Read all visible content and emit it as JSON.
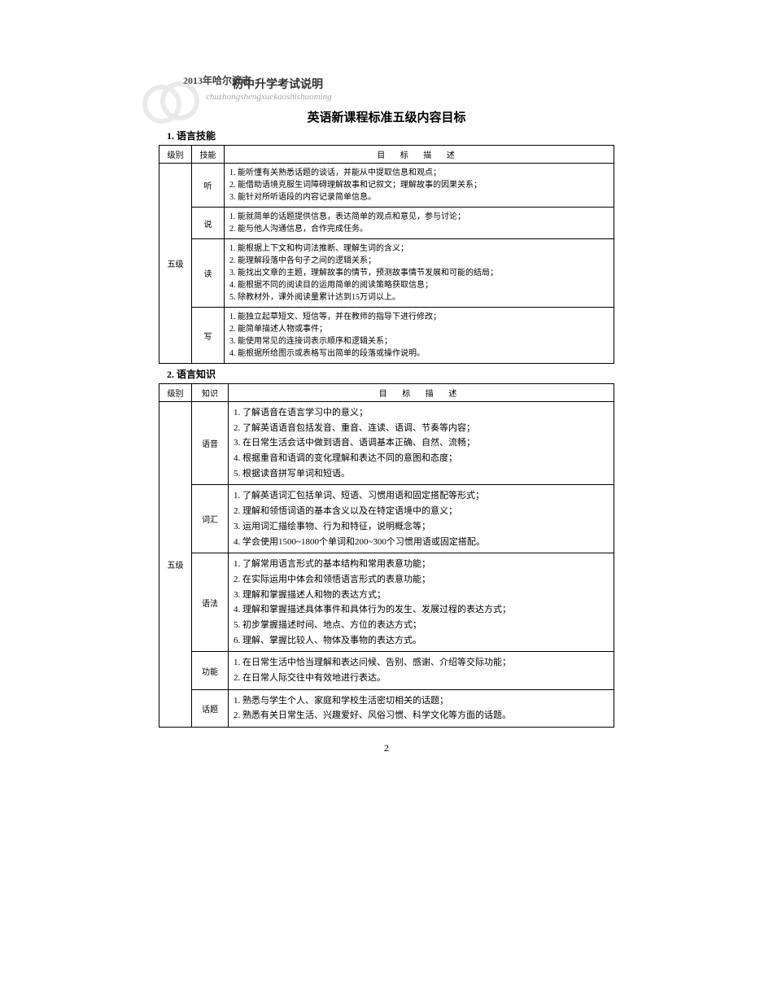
{
  "header": {
    "year": "2013年哈尔滨市",
    "chinese_title": "初中升学考试说明",
    "pinyin": "chuzhongshengxuekaoshishuoming"
  },
  "doc_title": "英语新课程标准五级内容目标",
  "page_number": "2",
  "section1": {
    "title": "1. 语言技能",
    "headers": {
      "level": "级别",
      "skill": "技能",
      "desc": "目  标  描  述"
    },
    "level": "五级",
    "rows": [
      {
        "skill": "听",
        "items": [
          "1. 能听懂有关熟悉话题的谈话，并能从中提取信息和观点；",
          "2. 能借助语境克服生词障碍理解故事和记叙文；理解故事的因果关系；",
          "3. 能针对所听语段的内容记录简单信息。"
        ]
      },
      {
        "skill": "说",
        "items": [
          "1. 能就简单的话题提供信息，表达简单的观点和意见，参与讨论；",
          "2. 能与他人沟通信息，合作完成任务。"
        ]
      },
      {
        "skill": "读",
        "items": [
          "1. 能根据上下文和构词法推断、理解生词的含义；",
          "2. 能理解段落中各句子之间的逻辑关系；",
          "3. 能找出文章的主题，理解故事的情节，预测故事情节发展和可能的结局；",
          "4. 能根据不同的阅读目的运用简单的阅读策略获取信息；",
          "5. 除教材外，课外阅读量累计达到15万词以上。"
        ]
      },
      {
        "skill": "写",
        "items": [
          "1. 能独立起草短文、短信等，并在教师的指导下进行修改；",
          "2. 能简单描述人物或事件；",
          "3. 能使用常见的连接词表示顺序和逻辑关系；",
          "4. 能根据所给图示或表格写出简单的段落或操作说明。"
        ]
      }
    ]
  },
  "section2": {
    "title": "2. 语言知识",
    "headers": {
      "level": "级别",
      "know": "知识",
      "desc": "目    标    描    述"
    },
    "level": "五级",
    "rows": [
      {
        "know": "语音",
        "items": [
          "1. 了解语音在语言学习中的意义；",
          "2. 了解英语语音包括发音、重音、连读、语调、节奏等内容；",
          "3. 在日常生活会话中做到语音、语调基本正确、自然、流畅；",
          "4. 根据重音和语调的变化理解和表达不同的意图和态度；",
          "5. 根据读音拼写单词和短语。"
        ]
      },
      {
        "know": "词汇",
        "items": [
          "1. 了解英语词汇包括单词、短语、习惯用语和固定搭配等形式；",
          "2. 理解和领悟词语的基本含义以及在特定语境中的意义；",
          "3. 运用词汇描绘事物、行为和特征，说明概念等；",
          "4. 学会使用1500~1800个单词和200~300个习惯用语或固定搭配。"
        ]
      },
      {
        "know": "语法",
        "items": [
          "1. 了解常用语言形式的基本结构和常用表意功能；",
          "2. 在实际运用中体会和领悟语言形式的表意功能；",
          "3. 理解和掌握描述人和物的表达方式；",
          "4. 理解和掌握描述具体事件和具体行为的发生、发展过程的表达方式；",
          "5. 初步掌握描述时间、地点、方位的表达方式；",
          "6. 理解、掌握比较人、物体及事物的表达方式。"
        ]
      },
      {
        "know": "功能",
        "items": [
          "1. 在日常生活中恰当理解和表达问候、告别、感谢、介绍等交际功能；",
          "2. 在日常人际交往中有效地进行表达。"
        ]
      },
      {
        "know": "话题",
        "items": [
          "1. 熟悉与学生个人、家庭和学校生活密切相关的话题；",
          "2. 熟悉有关日常生活、兴趣爱好、风俗习惯、科学文化等方面的话题。"
        ]
      }
    ]
  }
}
